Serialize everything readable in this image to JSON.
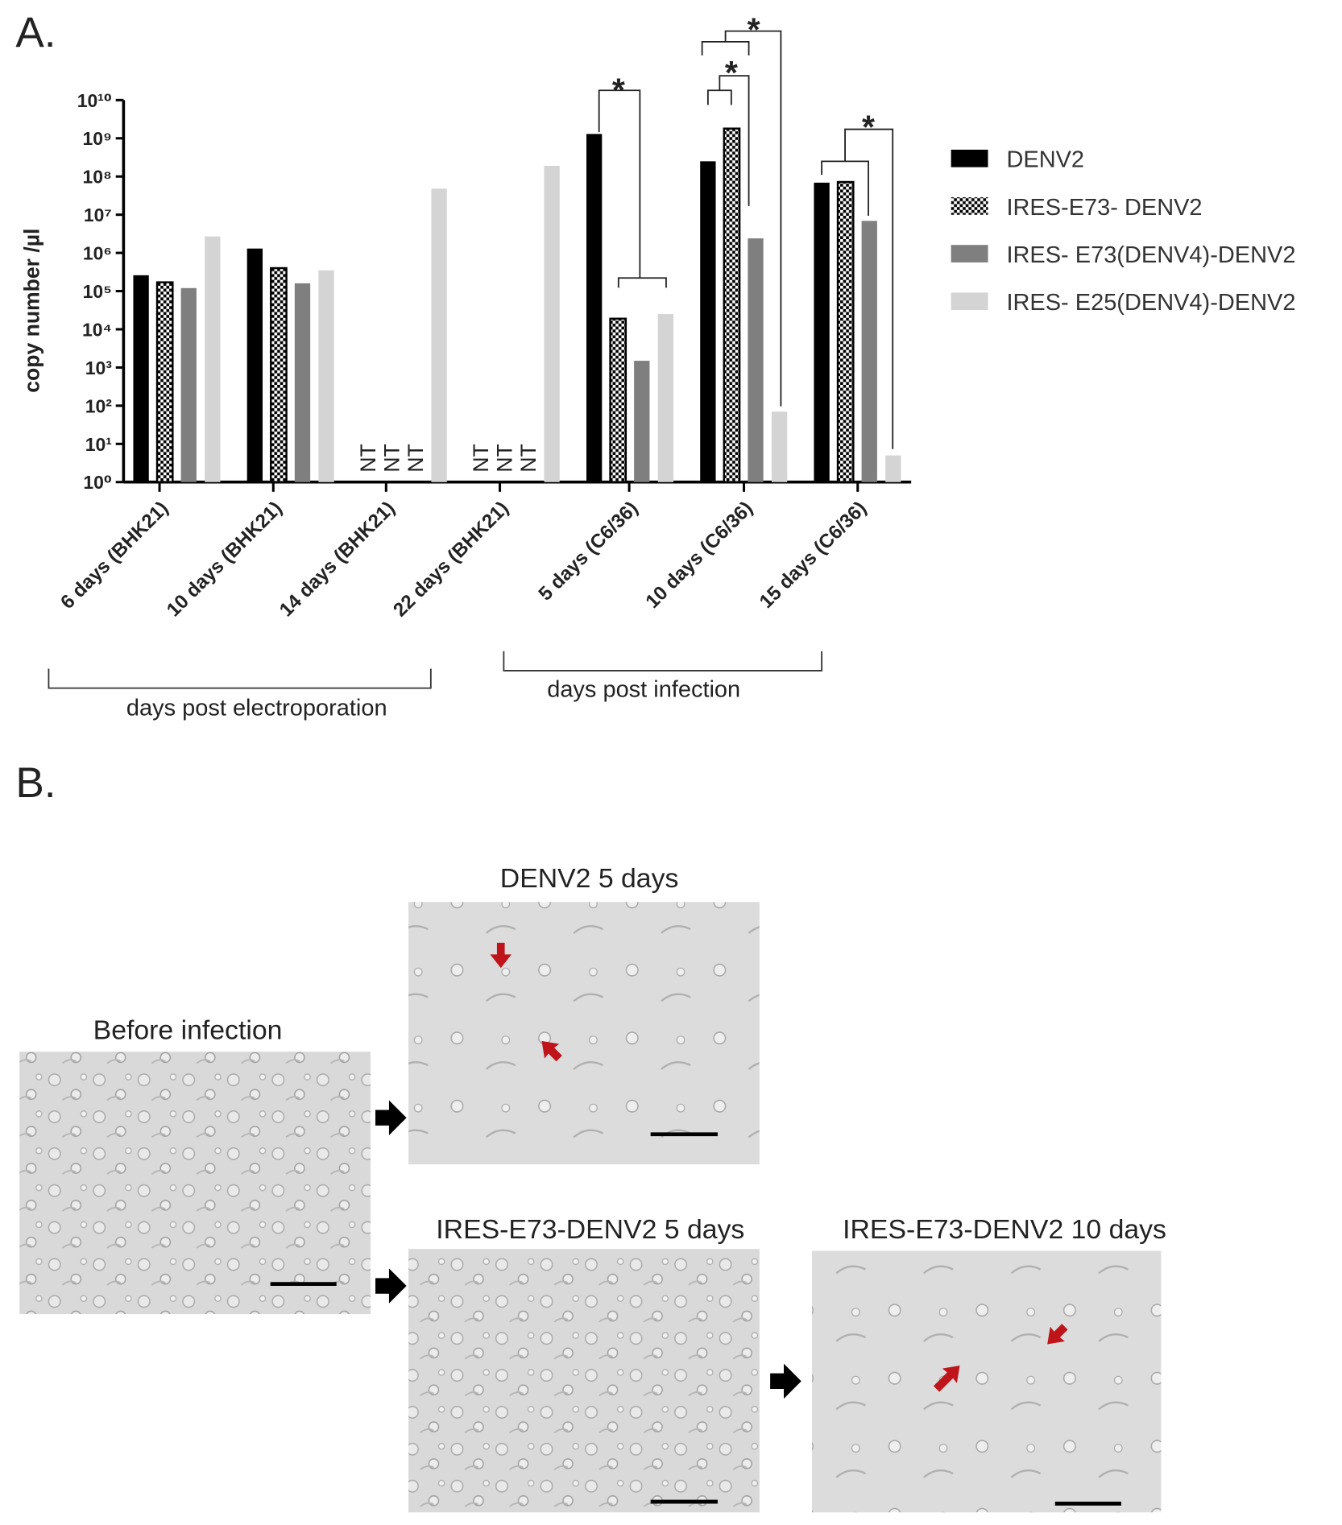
{
  "panel_labels": [
    "A.",
    "B."
  ],
  "chart_data": {
    "type": "bar",
    "log_scale": true,
    "y_label": "copy number /µl",
    "categories": [
      "6 days (BHK21)",
      "10 days (BHK21)",
      "14 days (BHK21)",
      "22 days (BHK21)",
      "5 days (C6/36)",
      "10 days (C6/36)",
      "15 days (C6/36)"
    ],
    "series": [
      {
        "name": "DENV2",
        "color": "#000000",
        "values": [
          260000,
          1300000,
          null,
          null,
          1300000000,
          250000000,
          69000000
        ],
        "value_labels": [
          null,
          null,
          "NT",
          "NT",
          null,
          null,
          null
        ]
      },
      {
        "name": "IRES-E73- DENV2",
        "color": "#000000",
        "pattern": "checker",
        "values": [
          170000,
          400000,
          null,
          null,
          19000,
          1800000000,
          72000000
        ],
        "value_labels": [
          null,
          null,
          "NT",
          "NT",
          null,
          null,
          null
        ]
      },
      {
        "name": "IRES- E73(DENV4)-DENV2",
        "color": "#7f7f7f",
        "values": [
          120000,
          160000,
          null,
          null,
          1500,
          2400000,
          6900000
        ],
        "value_labels": [
          null,
          null,
          "NT",
          "NT",
          null,
          null,
          null
        ]
      },
      {
        "name": "IRES- E25(DENV4)-DENV2",
        "color": "#d4d4d4",
        "values": [
          2700000,
          350000,
          48000000,
          190000000,
          25000,
          70,
          5
        ]
      }
    ],
    "ylim": [
      1,
      10000000000
    ],
    "yticks": [
      {
        "value": 1,
        "label": "10⁰"
      },
      {
        "value": 10,
        "label": "10¹"
      },
      {
        "value": 100,
        "label": "10²"
      },
      {
        "value": 1000,
        "label": "10³"
      },
      {
        "value": 10000,
        "label": "10⁴"
      },
      {
        "value": 100000,
        "label": "10⁵"
      },
      {
        "value": 1000000,
        "label": "10⁶"
      },
      {
        "value": 10000000,
        "label": "10⁷"
      },
      {
        "value": 100000000,
        "label": "10⁸"
      },
      {
        "value": 1000000000,
        "label": "10⁹"
      },
      {
        "value": 10000000000,
        "label": "10¹⁰"
      }
    ],
    "group_labels": [
      "days post electroporation",
      "days post infection"
    ],
    "significance_label": "*",
    "legend": "right"
  },
  "images": [
    {
      "caption": "Before infection"
    },
    {
      "caption": "DENV2 5 days"
    },
    {
      "caption": "IRES-E73-DENV2 5 days"
    },
    {
      "caption": "IRES-E73-DENV2 10 days"
    }
  ]
}
